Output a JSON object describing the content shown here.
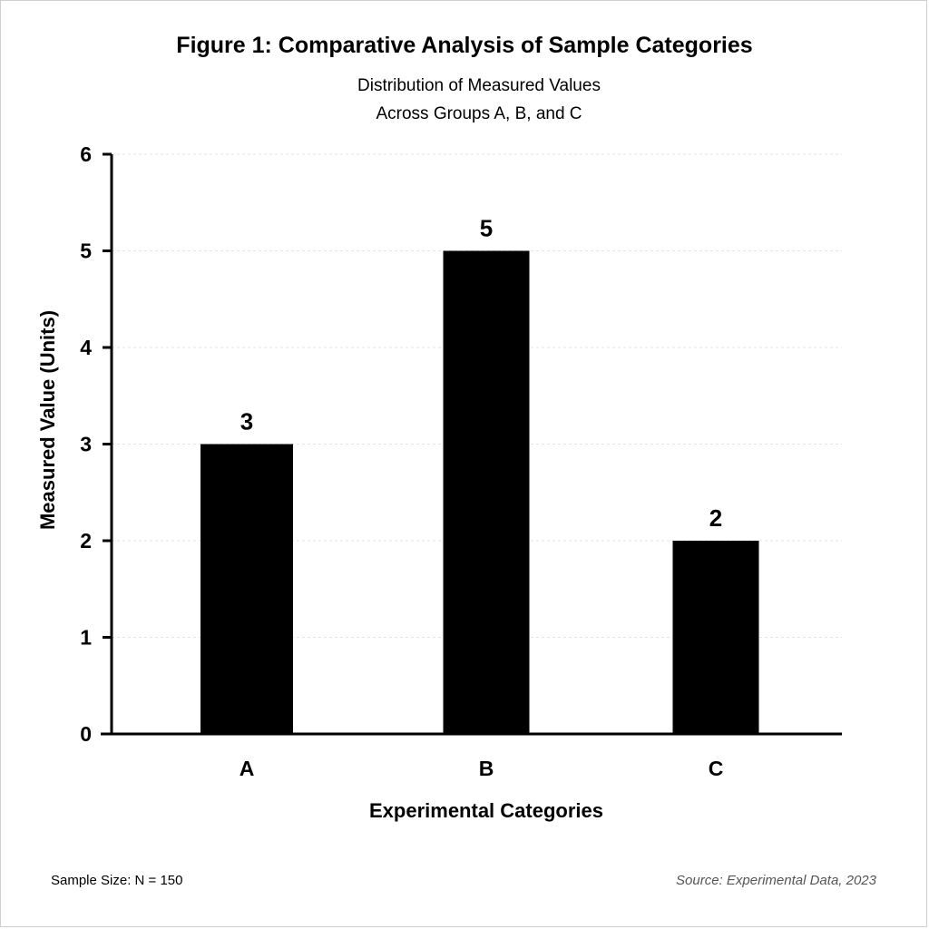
{
  "chart_data": {
    "type": "bar",
    "title": "Figure 1: Comparative Analysis of Sample Categories",
    "subtitle": [
      "Distribution of Measured Values",
      "Across Groups A, B, and C"
    ],
    "xlabel": "Experimental Categories",
    "ylabel": "Measured Value (Units)",
    "categories": [
      "A",
      "B",
      "C"
    ],
    "values": [
      3,
      5,
      2
    ],
    "data_labels": [
      "3",
      "5",
      "2"
    ],
    "ylim": [
      0,
      6
    ],
    "yticks": [
      "0",
      "1",
      "2",
      "3",
      "4",
      "5",
      "6"
    ],
    "grid": true,
    "bar_color": "#000000",
    "grid_color": "#e6e6e6"
  },
  "footer": {
    "sample_size": "Sample Size: N = 150",
    "source": "Source: Experimental Data, 2023"
  }
}
